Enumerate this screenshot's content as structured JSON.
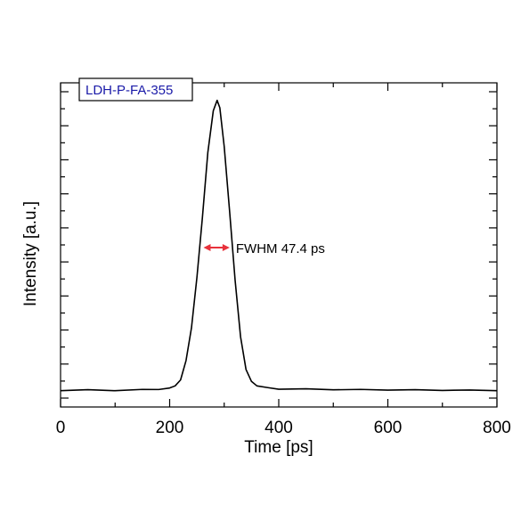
{
  "chart_data": {
    "type": "line",
    "title": "",
    "xlabel": "Time [ps]",
    "ylabel": "Intensity [a.u.]",
    "xlim": [
      0,
      800
    ],
    "ylim": [
      0,
      1.0
    ],
    "x_ticks": [
      0,
      200,
      400,
      600,
      800
    ],
    "x_tick_labels": [
      "0",
      "200",
      "400",
      "600",
      "800"
    ],
    "y_tick_labels_shown": false,
    "grid": false,
    "legend": {
      "text": "LDH-P-FA-355",
      "placement": "top-left",
      "color": "#1a1aa8"
    },
    "annotation": {
      "text": "FWHM 47.4 ps",
      "arrow_from_x": 262,
      "arrow_to_x": 310,
      "arrow_y": 0.5,
      "arrow_color": "#e8323c"
    },
    "series": [
      {
        "color": "#000000",
        "x": [
          0,
          50,
          100,
          150,
          180,
          200,
          210,
          220,
          230,
          240,
          250,
          260,
          270,
          280,
          287,
          292,
          300,
          310,
          320,
          330,
          340,
          350,
          360,
          380,
          400,
          450,
          500,
          550,
          600,
          650,
          700,
          750,
          800
        ],
        "y": [
          0.02,
          0.021,
          0.02,
          0.022,
          0.024,
          0.028,
          0.035,
          0.055,
          0.12,
          0.23,
          0.4,
          0.6,
          0.82,
          0.96,
          0.995,
          0.97,
          0.84,
          0.62,
          0.39,
          0.2,
          0.09,
          0.05,
          0.035,
          0.028,
          0.025,
          0.024,
          0.023,
          0.022,
          0.022,
          0.021,
          0.021,
          0.02,
          0.02
        ]
      }
    ]
  }
}
